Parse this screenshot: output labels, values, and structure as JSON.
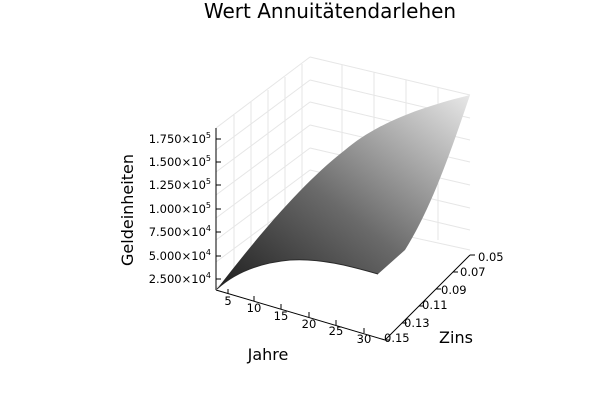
{
  "chart_data": {
    "type": "surface",
    "title": "Wert Annuitätendarlehen",
    "xlabel": "Jahre",
    "ylabel": "Zins",
    "zlabel": "Geldeinheiten",
    "xlim": [
      1,
      30
    ],
    "ylim": [
      0.05,
      0.15
    ],
    "zlim": [
      10000,
      190000
    ],
    "xticks": [
      "5",
      "10",
      "15",
      "20",
      "25",
      "30"
    ],
    "yticks": [
      "0.05",
      "0.07",
      "0.09",
      "0.11",
      "0.13",
      "0.15"
    ],
    "zticks": [
      {
        "mant": "2.500×10",
        "exp": "4"
      },
      {
        "mant": "5.000×10",
        "exp": "4"
      },
      {
        "mant": "7.500×10",
        "exp": "4"
      },
      {
        "mant": "1.000×10",
        "exp": "5"
      },
      {
        "mant": "1.250×10",
        "exp": "5"
      },
      {
        "mant": "1.500×10",
        "exp": "5"
      },
      {
        "mant": "1.750×10",
        "exp": "5"
      }
    ],
    "surface_corners": {
      "years_1_rate_0.05": 10000,
      "years_1_rate_0.15": 10000,
      "years_30_rate_0.05": 181000,
      "years_30_rate_0.15": 27000
    },
    "grid": true,
    "colormap": "grays"
  }
}
